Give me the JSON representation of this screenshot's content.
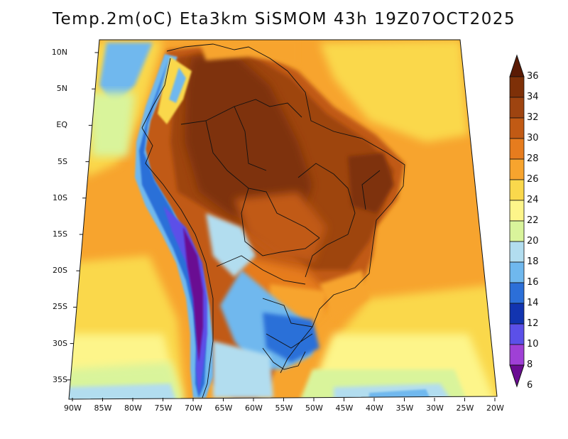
{
  "title": "Temp.2m(oC) Eta3km SiSMOM 43h 19Z07OCT2025",
  "map": {
    "lon_range": [
      -90,
      -20
    ],
    "lat_range": [
      -38,
      12
    ],
    "lat_ticks": [
      "10N",
      "5N",
      "EQ",
      "5S",
      "10S",
      "15S",
      "20S",
      "25S",
      "30S",
      "35S"
    ],
    "lon_ticks": [
      "90W",
      "85W",
      "80W",
      "75W",
      "70W",
      "65W",
      "60W",
      "55W",
      "50W",
      "45W",
      "40W",
      "35W",
      "30W",
      "25W",
      "20W"
    ]
  },
  "colorbar": {
    "labels": [
      "36",
      "34",
      "32",
      "30",
      "28",
      "26",
      "24",
      "22",
      "20",
      "18",
      "16",
      "14",
      "12",
      "10",
      "8",
      "6"
    ],
    "colors": [
      "#5a1a04",
      "#7e3008",
      "#9e4410",
      "#c15a14",
      "#e67c1e",
      "#f7a42e",
      "#fad84c",
      "#fdf58a",
      "#d9f49b",
      "#b2ddef",
      "#6fb8ee",
      "#2c6fd8",
      "#1234b0",
      "#5b50e8",
      "#9f40d6",
      "#6a0c92"
    ]
  }
}
